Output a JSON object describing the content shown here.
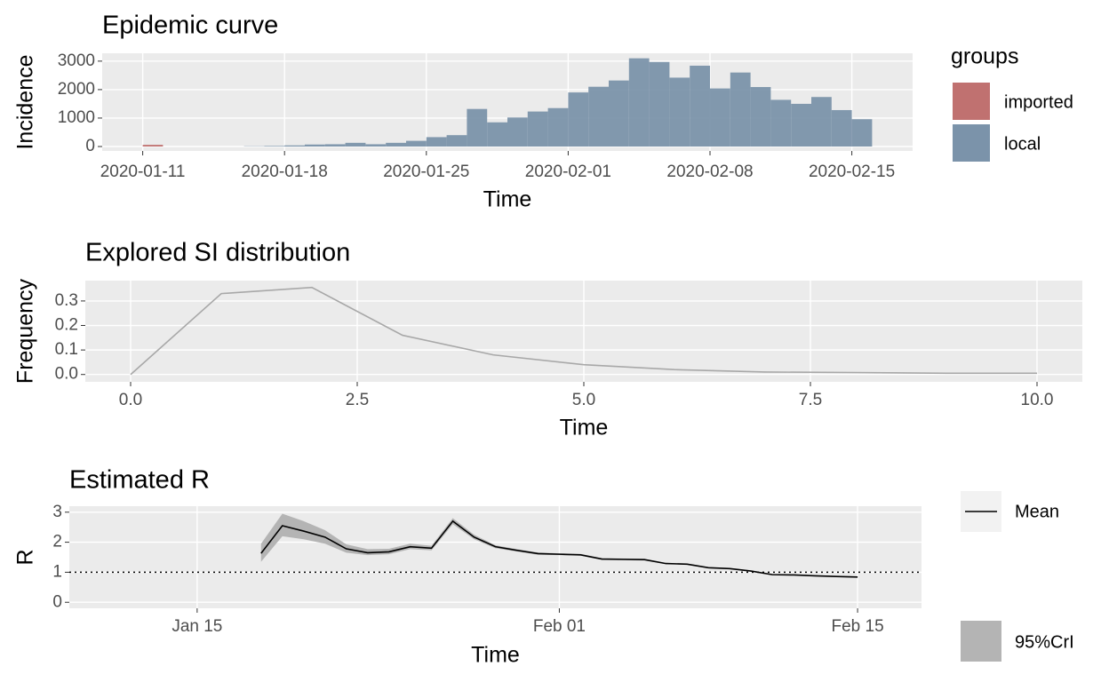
{
  "chart_data": [
    {
      "type": "bar",
      "title": "Epidemic curve",
      "x_label": "Time",
      "y_label": "Incidence",
      "x": [
        "2020-01-11",
        "2020-01-12",
        "2020-01-13",
        "2020-01-14",
        "2020-01-15",
        "2020-01-16",
        "2020-01-17",
        "2020-01-18",
        "2020-01-19",
        "2020-01-20",
        "2020-01-21",
        "2020-01-22",
        "2020-01-23",
        "2020-01-24",
        "2020-01-25",
        "2020-01-26",
        "2020-01-27",
        "2020-01-28",
        "2020-01-29",
        "2020-01-30",
        "2020-01-31",
        "2020-02-01",
        "2020-02-02",
        "2020-02-03",
        "2020-02-04",
        "2020-02-05",
        "2020-02-06",
        "2020-02-07",
        "2020-02-08",
        "2020-02-09",
        "2020-02-10",
        "2020-02-11",
        "2020-02-12",
        "2020-02-13",
        "2020-02-14",
        "2020-02-15"
      ],
      "series": [
        {
          "name": "imported",
          "color": "#c07170",
          "values": [
            60,
            0,
            0,
            0,
            0,
            0,
            0,
            0,
            0,
            0,
            0,
            0,
            0,
            0,
            0,
            0,
            0,
            0,
            0,
            0,
            0,
            0,
            0,
            0,
            0,
            0,
            0,
            0,
            0,
            0,
            0,
            0,
            0,
            0,
            0,
            0
          ]
        },
        {
          "name": "local",
          "color": "#7b93aa",
          "values": [
            0,
            0,
            0,
            0,
            0,
            10,
            20,
            40,
            70,
            80,
            130,
            80,
            130,
            200,
            330,
            400,
            1320,
            850,
            1020,
            1230,
            1350,
            1900,
            2100,
            2320,
            3100,
            2970,
            2420,
            2840,
            2040,
            2600,
            2090,
            1640,
            1500,
            1740,
            1280,
            960
          ]
        }
      ],
      "stacked": true,
      "legend_title": "groups",
      "legend": "right",
      "xlim": [
        "2020-01-09",
        "2020-02-18"
      ],
      "xticks": [
        "2020-01-11",
        "2020-01-18",
        "2020-01-25",
        "2020-02-01",
        "2020-02-08",
        "2020-02-15"
      ],
      "ylim": [
        -156,
        3276
      ],
      "yticks": [
        0,
        1000,
        2000,
        3000
      ],
      "grid": true
    },
    {
      "type": "line",
      "title": "Explored SI distribution",
      "x_label": "Time",
      "y_label": "Frequency",
      "x": [
        0,
        1,
        2,
        3,
        4,
        5,
        6,
        7,
        8,
        9,
        10
      ],
      "values": [
        0,
        0.33,
        0.355,
        0.16,
        0.08,
        0.04,
        0.02,
        0.01,
        0.008,
        0.005,
        0.005
      ],
      "color": "#a8a8a8",
      "xlim": [
        -0.5,
        10.5
      ],
      "xticks": [
        {
          "value": 0,
          "label": "0.0"
        },
        {
          "value": 2.5,
          "label": "2.5"
        },
        {
          "value": 5,
          "label": "5.0"
        },
        {
          "value": 7.5,
          "label": "7.5"
        },
        {
          "value": 10,
          "label": "10.0"
        }
      ],
      "ylim": [
        -0.03,
        0.383
      ],
      "yticks": [
        {
          "value": 0,
          "label": "0.0"
        },
        {
          "value": 0.1,
          "label": "0.1"
        },
        {
          "value": 0.2,
          "label": "0.2"
        },
        {
          "value": 0.3,
          "label": "0.3"
        }
      ],
      "grid": true
    },
    {
      "type": "line",
      "title": "Estimated R",
      "x_label": "Time",
      "y_label": "R",
      "x": [
        "01-18",
        "01-19",
        "01-20",
        "01-21",
        "01-22",
        "01-23",
        "01-24",
        "01-25",
        "01-26",
        "01-27",
        "01-28",
        "01-29",
        "01-30",
        "01-31",
        "02-01",
        "02-02",
        "02-03",
        "02-04",
        "02-05",
        "02-06",
        "02-07",
        "02-08",
        "02-09",
        "02-10",
        "02-11",
        "02-12",
        "02-13",
        "02-14",
        "02-15"
      ],
      "series": [
        {
          "name": "Mean",
          "color": "#000000",
          "values": [
            1.63,
            2.55,
            2.37,
            2.17,
            1.78,
            1.65,
            1.68,
            1.85,
            1.8,
            2.7,
            2.17,
            1.85,
            1.73,
            1.62,
            1.6,
            1.58,
            1.44,
            1.43,
            1.42,
            1.29,
            1.27,
            1.15,
            1.12,
            1.04,
            0.92,
            0.91,
            0.88,
            0.86,
            0.84
          ]
        }
      ],
      "band": {
        "name": "95%CrI",
        "color": "#b4b4b4",
        "lower": [
          1.35,
          2.2,
          2.1,
          1.95,
          1.65,
          1.57,
          1.6,
          1.77,
          1.73,
          2.6,
          2.1,
          1.8,
          1.69,
          1.58,
          1.57,
          1.55,
          1.41,
          1.4,
          1.39,
          1.27,
          1.25,
          1.13,
          1.1,
          1.02,
          0.9,
          0.89,
          0.86,
          0.84,
          0.82
        ],
        "upper": [
          1.95,
          2.95,
          2.7,
          2.4,
          1.93,
          1.77,
          1.78,
          1.95,
          1.88,
          2.8,
          2.25,
          1.9,
          1.77,
          1.66,
          1.63,
          1.61,
          1.47,
          1.46,
          1.45,
          1.31,
          1.29,
          1.17,
          1.14,
          1.06,
          0.94,
          0.93,
          0.9,
          0.88,
          0.86
        ]
      },
      "hline": 1,
      "legend": "right",
      "xlim": [
        "01-09",
        "02-18"
      ],
      "xticks": [
        {
          "value": "01-15",
          "label": "Jan 15"
        },
        {
          "value": "02-01",
          "label": "Feb 01"
        },
        {
          "value": "02-15",
          "label": "Feb 15"
        }
      ],
      "ylim": [
        -0.2,
        3.2
      ],
      "yticks": [
        0,
        1,
        2,
        3
      ],
      "grid": true
    }
  ]
}
